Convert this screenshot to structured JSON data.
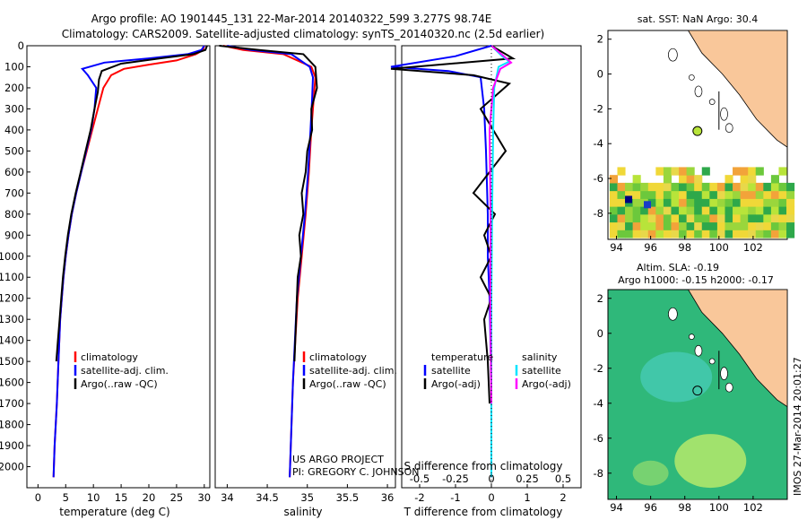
{
  "header": {
    "line1": "Argo profile: AO 1901445_131 22-Mar-2014 20140322_599 3.277S 98.74E",
    "line2": "Climatology: CARS2009. Satellite-adjusted climatology: synTS_20140320.nc (2.5d earlier)"
  },
  "credits": {
    "project": "US ARGO PROJECT",
    "pi": "PI: GREGORY C. JOHNSON",
    "imos": "IMOS 27-Mar-2014 20:01:27"
  },
  "colors": {
    "climatology": "#ff0000",
    "satellite": "#0000ff",
    "argo": "#000000",
    "sat_salinity": "#00e5ff",
    "argo_salinity": "#ff00ff",
    "land": "#f9c79a",
    "ocean_sla": "#2fb87a"
  },
  "legends": {
    "temp": [
      "climatology",
      "satellite-adj. clim.",
      "Argo(..raw -QC)"
    ],
    "sal": [
      "climatology",
      "satellite-adj. clim.",
      "Argo(..raw -QC)"
    ],
    "diff_temp_title": "temperature",
    "diff_sal_title": "salinity",
    "diff_temp": [
      "satellite",
      "Argo(-adj)"
    ],
    "diff_sal": [
      "satellite",
      "Argo(-adj)"
    ]
  },
  "maps": {
    "sst_title": "sat. SST: NaN Argo: 30.4",
    "sla_title1": "Altim. SLA: -0.19",
    "sla_title2": "Argo h1000: -0.15 h2000: -0.17",
    "xticks": [
      "94",
      "96",
      "98",
      "100",
      "102"
    ],
    "yticks": [
      "2",
      "0",
      "-2",
      "-4",
      "-6",
      "-8"
    ]
  },
  "chart_data": [
    {
      "type": "line",
      "xlabel": "temperature (deg C)",
      "ylabel": "",
      "xlim": [
        -2,
        31
      ],
      "ylim": [
        2100,
        0
      ],
      "xticks": [
        0,
        5,
        10,
        15,
        20,
        25,
        30
      ],
      "yticks": [
        0,
        100,
        200,
        300,
        400,
        500,
        600,
        700,
        800,
        900,
        1000,
        1100,
        1200,
        1300,
        1400,
        1500,
        1600,
        1700,
        1800,
        1900,
        2000
      ],
      "series": [
        {
          "name": "climatology",
          "x": [
            30.0,
            29.8,
            28.5,
            25.0,
            20.0,
            15.5,
            13.2,
            11.8,
            10.8,
            9.8,
            8.8,
            7.8,
            6.9,
            6.1,
            5.5,
            5.0,
            4.6,
            4.3,
            4.0,
            3.7,
            3.4,
            3.0,
            2.8
          ],
          "y": [
            0,
            20,
            40,
            70,
            90,
            110,
            140,
            200,
            300,
            400,
            500,
            600,
            700,
            800,
            900,
            1000,
            1100,
            1200,
            1300,
            1500,
            1700,
            1900,
            2050
          ]
        },
        {
          "name": "satellite-adj. clim.",
          "x": [
            30.0,
            29.5,
            27.0,
            20.0,
            12.0,
            8.0,
            9.0,
            10.5,
            10.2,
            9.6,
            8.7,
            7.8,
            6.9,
            6.1,
            5.5,
            5.0,
            4.6,
            4.3,
            4.0,
            3.7,
            3.4,
            3.0,
            2.8
          ],
          "y": [
            0,
            20,
            40,
            60,
            80,
            110,
            140,
            200,
            300,
            400,
            500,
            600,
            700,
            800,
            900,
            1000,
            1100,
            1200,
            1300,
            1500,
            1700,
            1900,
            2050
          ]
        },
        {
          "name": "Argo(..raw -QC)",
          "x": [
            30.5,
            30.2,
            28.0,
            22.0,
            15.0,
            11.5,
            11.0,
            10.8,
            10.2,
            9.5,
            8.6,
            7.7,
            6.8,
            6.0,
            5.4,
            4.9,
            4.5,
            4.2,
            3.9,
            3.6,
            3.3
          ],
          "y": [
            0,
            20,
            40,
            60,
            85,
            120,
            160,
            220,
            300,
            400,
            500,
            600,
            700,
            800,
            900,
            1000,
            1100,
            1200,
            1300,
            1400,
            1500
          ]
        }
      ]
    },
    {
      "type": "line",
      "xlabel": "salinity",
      "ylabel": "",
      "xlim": [
        33.85,
        36.1
      ],
      "ylim": [
        2100,
        0
      ],
      "xticks": [
        34,
        34.5,
        35,
        35.5,
        36
      ],
      "series": [
        {
          "name": "climatology",
          "x": [
            33.95,
            34.2,
            34.7,
            35.05,
            35.1,
            35.08,
            35.05,
            35.02,
            34.98,
            34.93,
            34.88,
            34.82,
            34.78
          ],
          "y": [
            0,
            20,
            40,
            100,
            150,
            250,
            400,
            600,
            800,
            1000,
            1200,
            1600,
            2050
          ]
        },
        {
          "name": "satellite-adj. clim.",
          "x": [
            34.0,
            34.3,
            34.8,
            35.03,
            35.07,
            35.06,
            35.04,
            35.01,
            34.97,
            34.92,
            34.87,
            34.82,
            34.78
          ],
          "y": [
            0,
            20,
            40,
            100,
            150,
            250,
            400,
            600,
            800,
            1000,
            1200,
            1600,
            2050
          ]
        },
        {
          "name": "Argo(..raw -QC)",
          "x": [
            33.9,
            34.4,
            34.95,
            35.1,
            35.12,
            35.05,
            35.06,
            35.0,
            34.98,
            34.93,
            34.95,
            34.9,
            34.92,
            34.88,
            34.86,
            34.84
          ],
          "y": [
            0,
            20,
            40,
            100,
            200,
            300,
            400,
            500,
            600,
            700,
            800,
            900,
            1000,
            1100,
            1300,
            1500
          ]
        }
      ]
    },
    {
      "type": "line",
      "xlabel": "T difference from climatology",
      "title": "S difference from climatology",
      "xlim": [
        -2.5,
        2.5
      ],
      "ylim": [
        2100,
        0
      ],
      "xticks_T": [
        -2,
        -1,
        0,
        1,
        2
      ],
      "xticks_S": [
        -0.5,
        -0.25,
        0,
        0.25,
        0.5
      ],
      "series": [
        {
          "name": "temperature satellite",
          "x": [
            0.0,
            -1.0,
            -2.8,
            -1.2,
            -0.3,
            -0.2,
            -0.15,
            -0.1,
            -0.1,
            -0.05,
            0.0,
            0.0
          ],
          "y": [
            0,
            50,
            100,
            120,
            150,
            300,
            500,
            800,
            1000,
            1200,
            1600,
            2050
          ]
        },
        {
          "name": "temperature Argo(-adj)",
          "x": [
            0.0,
            0.6,
            -2.8,
            -0.5,
            0.5,
            -0.3,
            0.4,
            -0.5,
            0.1,
            -0.2,
            0.0,
            -0.3,
            0.0,
            -0.2,
            -0.1,
            -0.05
          ],
          "y": [
            0,
            60,
            110,
            140,
            180,
            300,
            500,
            700,
            800,
            900,
            1000,
            1100,
            1200,
            1300,
            1500,
            1700
          ]
        },
        {
          "name": "salinity satellite",
          "x": [
            0.0,
            0.3,
            0.5,
            0.2,
            0.08,
            0.05,
            0.02,
            0.0,
            0.0
          ],
          "y": [
            0,
            50,
            75,
            100,
            200,
            400,
            800,
            1200,
            2050
          ]
        },
        {
          "name": "salinity Argo(-adj)",
          "x": [
            0.0,
            0.35,
            0.55,
            0.25,
            0.05,
            -0.05,
            -0.02,
            -0.03,
            0.0
          ],
          "y": [
            0,
            50,
            80,
            110,
            200,
            400,
            850,
            1200,
            1700
          ]
        }
      ]
    },
    {
      "type": "heatmap",
      "title": "sat. SST: NaN Argo: 30.4",
      "xlim": [
        93.5,
        104
      ],
      "ylim": [
        -9.5,
        2.5
      ],
      "argo_location": [
        98.74,
        -3.277
      ]
    },
    {
      "type": "heatmap",
      "title": "Altim. SLA: -0.19",
      "xlim": [
        93.5,
        104
      ],
      "ylim": [
        -9.5,
        2.5
      ],
      "argo_location": [
        98.74,
        -3.277
      ]
    }
  ]
}
